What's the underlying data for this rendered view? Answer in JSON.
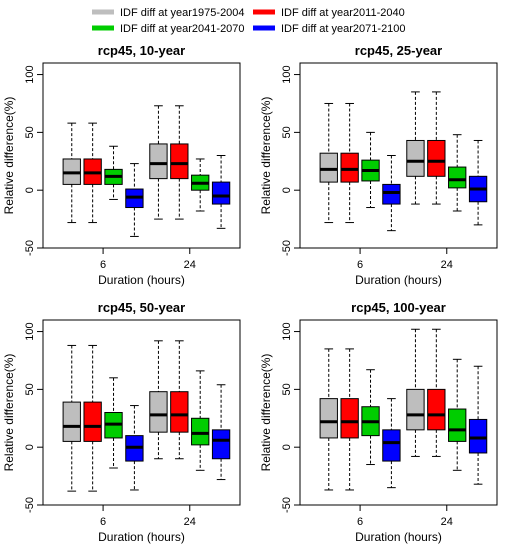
{
  "legend": {
    "items": [
      {
        "label": "IDF diff at year1975-2004",
        "color": "#BEBEBE"
      },
      {
        "label": "IDF diff at year2011-2040",
        "color": "#FF0000"
      },
      {
        "label": "IDF diff at year2041-2070",
        "color": "#00CD00"
      },
      {
        "label": "IDF diff at year2071-2100",
        "color": "#0000FF"
      }
    ]
  },
  "chart_data": [
    {
      "type": "boxplot",
      "title": "rcp45, 10-year",
      "xlabel": "Duration (hours)",
      "ylabel": "Relative difference(%)",
      "ylim": [
        -50,
        110
      ],
      "yticks": [
        -50,
        0,
        50,
        100
      ],
      "categories": [
        "6",
        "24"
      ],
      "series": [
        {
          "name": "IDF diff at year1975-2004",
          "color": "#BEBEBE",
          "boxes": [
            {
              "min": -28,
              "q1": 5,
              "median": 15,
              "q3": 27,
              "max": 58
            },
            {
              "min": -25,
              "q1": 10,
              "median": 23,
              "q3": 40,
              "max": 73
            }
          ]
        },
        {
          "name": "IDF diff at year2011-2040",
          "color": "#FF0000",
          "boxes": [
            {
              "min": -28,
              "q1": 5,
              "median": 15,
              "q3": 27,
              "max": 58
            },
            {
              "min": -25,
              "q1": 10,
              "median": 23,
              "q3": 40,
              "max": 73
            }
          ]
        },
        {
          "name": "IDF diff at year2041-2070",
          "color": "#00CD00",
          "boxes": [
            {
              "min": -8,
              "q1": 5,
              "median": 12,
              "q3": 18,
              "max": 38
            },
            {
              "min": -18,
              "q1": 0,
              "median": 6,
              "q3": 13,
              "max": 27
            }
          ]
        },
        {
          "name": "IDF diff at year2071-2100",
          "color": "#0000FF",
          "boxes": [
            {
              "min": -40,
              "q1": -15,
              "median": -6,
              "q3": 1,
              "max": 23
            },
            {
              "min": -33,
              "q1": -12,
              "median": -5,
              "q3": 7,
              "max": 30
            }
          ]
        }
      ]
    },
    {
      "type": "boxplot",
      "title": "rcp45, 25-year",
      "xlabel": "Duration (hours)",
      "ylabel": "Relative difference(%)",
      "ylim": [
        -50,
        110
      ],
      "yticks": [
        -50,
        0,
        50,
        100
      ],
      "categories": [
        "6",
        "24"
      ],
      "series": [
        {
          "name": "IDF diff at year1975-2004",
          "color": "#BEBEBE",
          "boxes": [
            {
              "min": -28,
              "q1": 7,
              "median": 18,
              "q3": 32,
              "max": 75
            },
            {
              "min": -12,
              "q1": 12,
              "median": 25,
              "q3": 43,
              "max": 85
            }
          ]
        },
        {
          "name": "IDF diff at year2011-2040",
          "color": "#FF0000",
          "boxes": [
            {
              "min": -28,
              "q1": 7,
              "median": 18,
              "q3": 32,
              "max": 75
            },
            {
              "min": -12,
              "q1": 12,
              "median": 25,
              "q3": 43,
              "max": 85
            }
          ]
        },
        {
          "name": "IDF diff at year2041-2070",
          "color": "#00CD00",
          "boxes": [
            {
              "min": -15,
              "q1": 8,
              "median": 17,
              "q3": 26,
              "max": 50
            },
            {
              "min": -18,
              "q1": 2,
              "median": 9,
              "q3": 20,
              "max": 48
            }
          ]
        },
        {
          "name": "IDF diff at year2071-2100",
          "color": "#0000FF",
          "boxes": [
            {
              "min": -35,
              "q1": -12,
              "median": -2,
              "q3": 5,
              "max": 30
            },
            {
              "min": -30,
              "q1": -10,
              "median": 1,
              "q3": 12,
              "max": 43
            }
          ]
        }
      ]
    },
    {
      "type": "boxplot",
      "title": "rcp45, 50-year",
      "xlabel": "Duration (hours)",
      "ylabel": "Relative difference(%)",
      "ylim": [
        -50,
        110
      ],
      "yticks": [
        -50,
        0,
        50,
        100
      ],
      "categories": [
        "6",
        "24"
      ],
      "series": [
        {
          "name": "IDF diff at year1975-2004",
          "color": "#BEBEBE",
          "boxes": [
            {
              "min": -38,
              "q1": 5,
              "median": 18,
              "q3": 39,
              "max": 88
            },
            {
              "min": -10,
              "q1": 13,
              "median": 28,
              "q3": 48,
              "max": 92
            }
          ]
        },
        {
          "name": "IDF diff at year2011-2040",
          "color": "#FF0000",
          "boxes": [
            {
              "min": -38,
              "q1": 5,
              "median": 18,
              "q3": 39,
              "max": 88
            },
            {
              "min": -10,
              "q1": 13,
              "median": 28,
              "q3": 48,
              "max": 92
            }
          ]
        },
        {
          "name": "IDF diff at year2041-2070",
          "color": "#00CD00",
          "boxes": [
            {
              "min": -18,
              "q1": 8,
              "median": 20,
              "q3": 30,
              "max": 60
            },
            {
              "min": -20,
              "q1": 2,
              "median": 12,
              "q3": 25,
              "max": 66
            }
          ]
        },
        {
          "name": "IDF diff at year2071-2100",
          "color": "#0000FF",
          "boxes": [
            {
              "min": -37,
              "q1": -12,
              "median": 0,
              "q3": 10,
              "max": 36
            },
            {
              "min": -28,
              "q1": -10,
              "median": 6,
              "q3": 15,
              "max": 54
            }
          ]
        }
      ]
    },
    {
      "type": "boxplot",
      "title": "rcp45, 100-year",
      "xlabel": "Duration (hours)",
      "ylabel": "Relative difference(%)",
      "ylim": [
        -50,
        110
      ],
      "yticks": [
        -50,
        0,
        50,
        100
      ],
      "categories": [
        "6",
        "24"
      ],
      "series": [
        {
          "name": "IDF diff at year1975-2004",
          "color": "#BEBEBE",
          "boxes": [
            {
              "min": -37,
              "q1": 8,
              "median": 22,
              "q3": 42,
              "max": 85
            },
            {
              "min": -8,
              "q1": 15,
              "median": 28,
              "q3": 50,
              "max": 102
            }
          ]
        },
        {
          "name": "IDF diff at year2011-2040",
          "color": "#FF0000",
          "boxes": [
            {
              "min": -37,
              "q1": 8,
              "median": 22,
              "q3": 42,
              "max": 85
            },
            {
              "min": -8,
              "q1": 15,
              "median": 28,
              "q3": 50,
              "max": 102
            }
          ]
        },
        {
          "name": "IDF diff at year2041-2070",
          "color": "#00CD00",
          "boxes": [
            {
              "min": -15,
              "q1": 10,
              "median": 22,
              "q3": 35,
              "max": 67
            },
            {
              "min": -20,
              "q1": 5,
              "median": 15,
              "q3": 33,
              "max": 76
            }
          ]
        },
        {
          "name": "IDF diff at year2071-2100",
          "color": "#0000FF",
          "boxes": [
            {
              "min": -35,
              "q1": -12,
              "median": 4,
              "q3": 15,
              "max": 42
            },
            {
              "min": -32,
              "q1": -5,
              "median": 8,
              "q3": 24,
              "max": 70
            }
          ]
        }
      ]
    }
  ]
}
